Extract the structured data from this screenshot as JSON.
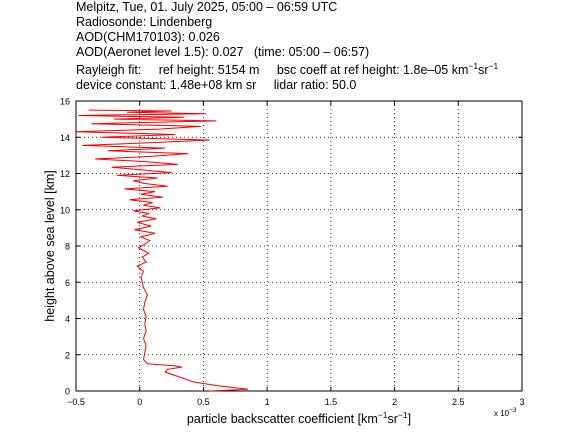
{
  "header": {
    "title": "Melpitz, Tue, 01. July 2025, 05:00 – 06:59 UTC",
    "radiosonde": "Radiosonde: Lindenberg",
    "aod_chm": "AOD(CHM170103): 0.026",
    "aod_aeronet": "AOD(Aeronet level 1.5): 0.027",
    "aod_time": "(time: 05:00 – 06:57)",
    "rayleigh_label": "Rayleigh fit:",
    "ref_height": "ref height: 5154 m",
    "bsc_coeff_prefix": "bsc coeff at ref height: 1.8e–05 km",
    "unit_exp1": "−1",
    "unit_sr": "sr",
    "unit_exp2": "−1",
    "device_constant": "device constant: 1.48e+08 km sr",
    "lidar_ratio": "lidar ratio: 50.0"
  },
  "chart_data": {
    "type": "line",
    "xlabel_prefix": "particle backscatter coefficient [km",
    "xlabel_exp1": "−1",
    "xlabel_mid": "sr",
    "xlabel_exp2": "−1",
    "xlabel_suffix": "]",
    "ylabel": "height above sea level [km]",
    "x_multiplier": "x 10",
    "x_multiplier_exp": "−3",
    "xlim": [
      -0.5,
      3
    ],
    "ylim": [
      0,
      16
    ],
    "xticks": [
      "−0.5",
      "0",
      "0.5",
      "1",
      "1.5",
      "2",
      "2.5",
      "3"
    ],
    "yticks": [
      "0",
      "2",
      "4",
      "6",
      "8",
      "10",
      "12",
      "14",
      "16"
    ],
    "grid": true,
    "line_color": "#ff0000",
    "series": [
      {
        "x": [
          0.55,
          0.85,
          0.62,
          0.42,
          0.3,
          0.2,
          0.22,
          0.33,
          0.26,
          0.16,
          0.06,
          0.03,
          0.04,
          0.05,
          0.03,
          0.05,
          0.04,
          0.05,
          0.03,
          0.04,
          0.06,
          0.03,
          0.02,
          0.01,
          0.03,
          -0.02,
          0.05,
          0.02,
          0.07,
          -0.01,
          0.04,
          0.08,
          0.01,
          0.12,
          -0.04,
          0.09,
          -0.02,
          0.13,
          0.02,
          0.07,
          -0.05,
          0.16,
          0.03,
          0.1,
          -0.08,
          0.18,
          0.01,
          0.12,
          -0.12,
          0.22,
          0.04,
          -0.05,
          0.14,
          -0.18,
          0.25,
          0.02,
          -0.22,
          0.3,
          0.06,
          -0.35,
          0.1,
          0.38,
          -0.25,
          0.2,
          -0.45,
          0.08,
          0.55,
          -0.3,
          0.28,
          -0.5,
          0.15,
          0.48,
          -0.38,
          0.6,
          -0.2,
          0.35,
          -0.48,
          0.52,
          -0.1,
          0.25,
          -0.4
        ],
        "y": [
          0.0,
          0.1,
          0.28,
          0.5,
          0.8,
          1.05,
          1.2,
          1.32,
          1.4,
          1.45,
          1.5,
          1.75,
          2.1,
          2.5,
          2.9,
          3.3,
          3.7,
          4.1,
          4.5,
          4.9,
          5.3,
          5.7,
          6.0,
          6.3,
          6.6,
          6.9,
          7.1,
          7.4,
          7.6,
          7.9,
          8.1,
          8.3,
          8.5,
          8.7,
          8.9,
          9.1,
          9.3,
          9.5,
          9.65,
          9.8,
          9.95,
          10.1,
          10.25,
          10.4,
          10.55,
          10.7,
          10.85,
          11.0,
          11.15,
          11.3,
          11.45,
          11.6,
          11.75,
          11.9,
          12.05,
          12.2,
          12.35,
          12.5,
          12.65,
          12.8,
          12.95,
          13.1,
          13.25,
          13.4,
          13.55,
          13.7,
          13.85,
          14.0,
          14.15,
          14.3,
          14.45,
          14.6,
          14.75,
          14.9,
          15.0,
          15.1,
          15.2,
          15.3,
          15.38,
          15.45,
          15.5
        ]
      }
    ]
  }
}
